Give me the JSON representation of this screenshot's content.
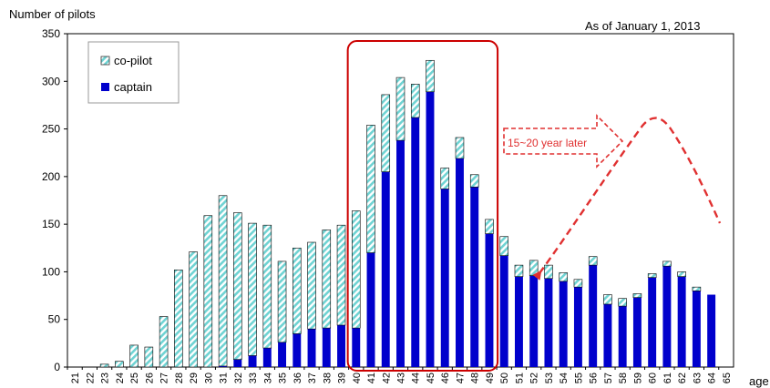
{
  "chart_data": {
    "type": "bar",
    "stacked": true,
    "title": "",
    "ylabel": "Number of pilots",
    "xlabel": "age",
    "note": "As of January 1, 2013",
    "ylim": [
      0,
      350
    ],
    "yticks": [
      0,
      50,
      100,
      150,
      200,
      250,
      300,
      350
    ],
    "grid": false,
    "legend_position": "top-left",
    "categories": [
      "21",
      "22",
      "23",
      "24",
      "25",
      "26",
      "27",
      "28",
      "29",
      "30",
      "31",
      "32",
      "33",
      "34",
      "35",
      "36",
      "37",
      "38",
      "39",
      "40",
      "41",
      "42",
      "43",
      "44",
      "45",
      "46",
      "47",
      "48",
      "49",
      "50",
      "51",
      "52",
      "53",
      "54",
      "55",
      "56",
      "57",
      "58",
      "59",
      "60",
      "61",
      "62",
      "63",
      "64",
      "65"
    ],
    "series": [
      {
        "name": "captain",
        "color": "#0000cc",
        "values": [
          0,
          0,
          0,
          0,
          0,
          0,
          0,
          0,
          0,
          0,
          1,
          8,
          12,
          20,
          26,
          35,
          40,
          41,
          44,
          41,
          120,
          205,
          238,
          262,
          289,
          187,
          219,
          189,
          140,
          117,
          95,
          96,
          93,
          90,
          84,
          107,
          66,
          64,
          73,
          94,
          106,
          95,
          80,
          76,
          0
        ]
      },
      {
        "name": "co-pilot",
        "color": "#6fd3d3",
        "pattern": "diagonal-hatch",
        "values": [
          0,
          0,
          3,
          6,
          23,
          21,
          53,
          102,
          121,
          159,
          179,
          154,
          139,
          129,
          85,
          90,
          91,
          103,
          105,
          123,
          134,
          81,
          66,
          35,
          33,
          22,
          22,
          13,
          15,
          20,
          12,
          16,
          14,
          9,
          8,
          9,
          10,
          8,
          4,
          4,
          5,
          5,
          4,
          0,
          0
        ]
      }
    ],
    "annotation": {
      "label": "15~20 year later",
      "highlight_from": "40",
      "highlight_to": "49",
      "highlight_color": "#cc0000"
    }
  }
}
